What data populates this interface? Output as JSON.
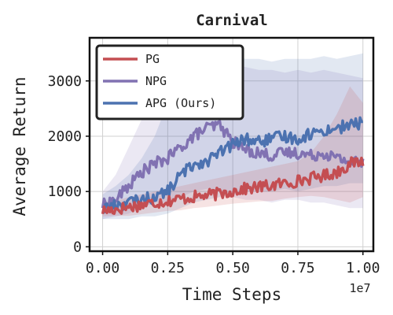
{
  "chart_data": {
    "type": "line",
    "title": "Carnival",
    "xlabel": "Time Steps",
    "ylabel": "Average Return",
    "x_offset_label": "1e7",
    "xlim": [
      -0.05,
      1.04
    ],
    "ylim": [
      -80,
      3780
    ],
    "xticks": [
      0.0,
      0.25,
      0.5,
      0.75,
      1.0
    ],
    "xtick_labels": [
      "0.00",
      "0.25",
      "0.50",
      "0.75",
      "1.00"
    ],
    "yticks": [
      0,
      1000,
      2000,
      3000
    ],
    "ytick_labels": [
      "0",
      "1000",
      "2000",
      "3000"
    ],
    "grid": true,
    "legend_position": "top-left",
    "series": [
      {
        "name": "PG",
        "color": "#c44e52",
        "x": [
          0.0,
          0.05,
          0.1,
          0.15,
          0.2,
          0.25,
          0.3,
          0.35,
          0.4,
          0.45,
          0.5,
          0.55,
          0.6,
          0.65,
          0.7,
          0.75,
          0.8,
          0.85,
          0.9,
          0.95,
          1.0
        ],
        "mean": [
          650,
          680,
          720,
          760,
          800,
          830,
          870,
          900,
          930,
          960,
          1010,
          1050,
          1080,
          1110,
          1150,
          1190,
          1240,
          1290,
          1350,
          1500,
          1550
        ],
        "lower": [
          550,
          560,
          560,
          590,
          620,
          650,
          660,
          700,
          720,
          750,
          780,
          800,
          820,
          830,
          870,
          900,
          920,
          900,
          850,
          800,
          900
        ],
        "upper": [
          800,
          830,
          900,
          950,
          1000,
          1050,
          1100,
          1150,
          1200,
          1250,
          1300,
          1350,
          1400,
          1450,
          1500,
          1550,
          1700,
          2000,
          2400,
          2900,
          2600
        ]
      },
      {
        "name": "NPG",
        "color": "#8172b2",
        "x": [
          0.0,
          0.05,
          0.1,
          0.15,
          0.2,
          0.25,
          0.3,
          0.35,
          0.4,
          0.45,
          0.5,
          0.55,
          0.6,
          0.65,
          0.7,
          0.75,
          0.8,
          0.85,
          0.9,
          0.95,
          1.0
        ],
        "mean": [
          750,
          850,
          1100,
          1350,
          1500,
          1600,
          1800,
          2000,
          2150,
          2200,
          1900,
          1750,
          1700,
          1650,
          1700,
          1700,
          1650,
          1700,
          1600,
          1550,
          1520
        ],
        "lower": [
          500,
          550,
          600,
          700,
          800,
          800,
          900,
          1000,
          1050,
          1000,
          900,
          850,
          850,
          800,
          850,
          850,
          800,
          800,
          750,
          700,
          700
        ],
        "upper": [
          1000,
          1300,
          1800,
          2300,
          2700,
          2900,
          3100,
          3200,
          3300,
          3350,
          3300,
          3250,
          3200,
          3200,
          3150,
          3200,
          3150,
          3200,
          3150,
          3100,
          3050
        ]
      },
      {
        "name": "APG (Ours)",
        "color": "#4c72b0",
        "x": [
          0.0,
          0.05,
          0.1,
          0.15,
          0.2,
          0.25,
          0.3,
          0.35,
          0.4,
          0.45,
          0.5,
          0.55,
          0.6,
          0.65,
          0.7,
          0.75,
          0.8,
          0.85,
          0.9,
          0.95,
          1.0
        ],
        "mean": [
          700,
          750,
          800,
          850,
          900,
          1000,
          1300,
          1500,
          1550,
          1700,
          1850,
          1950,
          1900,
          1950,
          2000,
          1950,
          2050,
          2100,
          2150,
          2200,
          2250
        ],
        "lower": [
          500,
          500,
          500,
          550,
          550,
          600,
          700,
          800,
          850,
          900,
          950,
          1000,
          1000,
          1000,
          1050,
          1000,
          1050,
          1100,
          1100,
          1150,
          1150
        ],
        "upper": [
          950,
          1100,
          1300,
          1600,
          2000,
          2600,
          3000,
          3300,
          3450,
          3500,
          3450,
          3400,
          3400,
          3350,
          3400,
          3400,
          3400,
          3450,
          3400,
          3450,
          3500
        ]
      }
    ]
  }
}
